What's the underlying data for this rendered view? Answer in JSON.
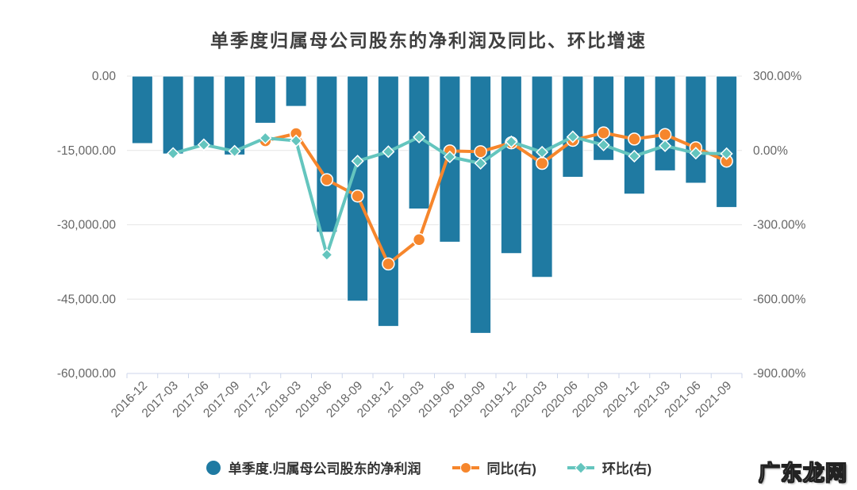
{
  "title": "单季度归属母公司股东的净利润及同比、环比增速",
  "watermark": "广东龙网",
  "colors": {
    "bar": "#1F7AA2",
    "yoy": "#F6862C",
    "qoq": "#64C5BE",
    "grid": "#E6E6E6",
    "axis_line": "#CCD6EB",
    "tick_label": "#666666",
    "title": "#3F3F3F",
    "legend_text": "#333333",
    "background": "#FFFFFF"
  },
  "chart_data": {
    "type": "bar+line combo",
    "title": "单季度归属母公司股东的净利润及同比、环比增速",
    "legend_position": "bottom",
    "grid": "horizontal only",
    "categories": [
      "2016-12",
      "2017-03",
      "2017-06",
      "2017-09",
      "2017-12",
      "2018-03",
      "2018-06",
      "2018-09",
      "2018-12",
      "2019-03",
      "2019-06",
      "2019-09",
      "2019-12",
      "2020-03",
      "2020-06",
      "2020-09",
      "2020-12",
      "2021-03",
      "2021-06",
      "2021-09"
    ],
    "series": [
      {
        "name": "单季度.归属母公司股东的净利润",
        "type": "bar",
        "axis": "left",
        "marker": "circle",
        "values": [
          -13600,
          -15700,
          -14100,
          -15900,
          -9500,
          -6100,
          -31500,
          -45400,
          -50500,
          -26800,
          -33500,
          -51900,
          -35800,
          -40600,
          -20400,
          -17000,
          -23800,
          -19100,
          -21600,
          -26500
        ]
      },
      {
        "name": "同比(右)",
        "type": "line",
        "axis": "right",
        "marker": "circle",
        "values": [
          null,
          null,
          null,
          null,
          39,
          68,
          -118,
          -184,
          -458,
          -360,
          -2,
          -5,
          31,
          -52,
          41,
          71,
          46,
          64,
          11,
          -43
        ]
      },
      {
        "name": "环比(右)",
        "type": "line",
        "axis": "right",
        "marker": "diamond",
        "values": [
          null,
          -12,
          23,
          -3,
          50,
          39,
          -421,
          -43,
          -5,
          54,
          -26,
          -52,
          35,
          -7,
          55,
          22,
          -23,
          19,
          -11,
          -13
        ]
      }
    ],
    "y_left": {
      "min": -60000,
      "max": 0,
      "ticks": [
        "0.00",
        "-15,000.00",
        "-30,000.00",
        "-45,000.00",
        "-60,000.00"
      ]
    },
    "y_right": {
      "min": -900,
      "max": 300,
      "ticks": [
        "300.00%",
        "0.00%",
        "-300.00%",
        "-600.00%",
        "-900.00%"
      ]
    }
  }
}
